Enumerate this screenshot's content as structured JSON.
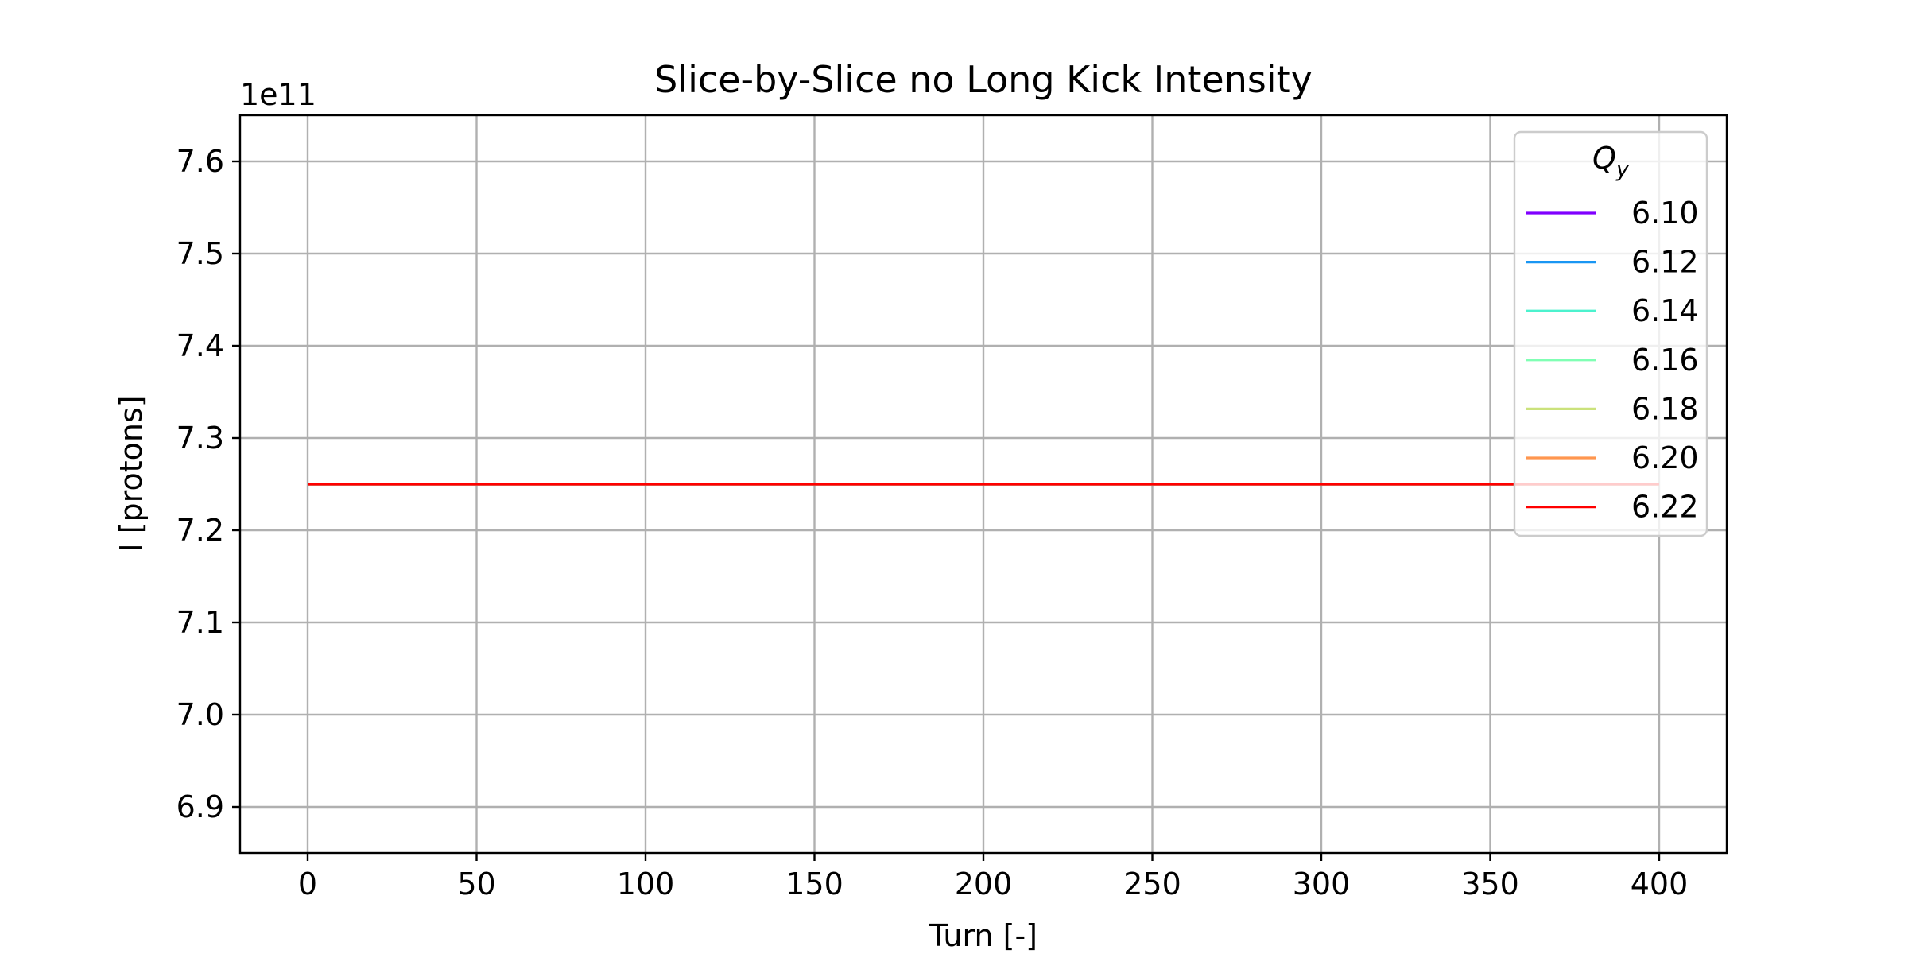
{
  "chart_data": {
    "type": "line",
    "title": "Slice-by-Slice no Long Kick Intensity",
    "xlabel": "Turn [-]",
    "ylabel": "I [protons]",
    "y_offset_label": "1e11",
    "xlim": [
      -20,
      420
    ],
    "ylim": [
      6.85,
      7.65
    ],
    "x_ticks": [
      0,
      50,
      100,
      150,
      200,
      250,
      300,
      350,
      400
    ],
    "y_ticks": [
      6.9,
      7.0,
      7.1,
      7.2,
      7.3,
      7.4,
      7.5,
      7.6
    ],
    "grid": true,
    "legend": {
      "title_main": "Q",
      "title_sub": "y",
      "placement": "upper right"
    },
    "series": [
      {
        "name": "6.10",
        "color": "#8000ff",
        "x": [
          0,
          400
        ],
        "y": [
          7.25,
          7.25
        ]
      },
      {
        "name": "6.12",
        "color": "#1996f3",
        "x": [
          0,
          400
        ],
        "y": [
          7.25,
          7.25
        ]
      },
      {
        "name": "6.14",
        "color": "#4cf2ce",
        "x": [
          0,
          400
        ],
        "y": [
          7.25,
          7.25
        ]
      },
      {
        "name": "6.16",
        "color": "#80ffb4",
        "x": [
          0,
          400
        ],
        "y": [
          7.25,
          7.25
        ]
      },
      {
        "name": "6.18",
        "color": "#cbe27c",
        "x": [
          0,
          400
        ],
        "y": [
          7.25,
          7.25
        ]
      },
      {
        "name": "6.20",
        "color": "#ff964f",
        "x": [
          0,
          400
        ],
        "y": [
          7.25,
          7.25
        ]
      },
      {
        "name": "6.22",
        "color": "#ff0000",
        "x": [
          0,
          400
        ],
        "y": [
          7.25,
          7.25
        ]
      }
    ]
  }
}
